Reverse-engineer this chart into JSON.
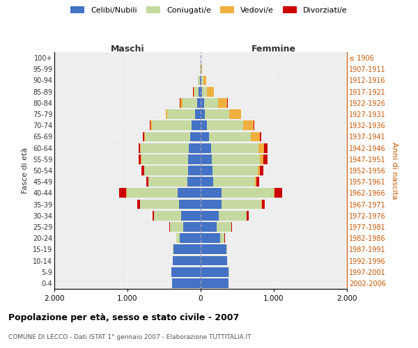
{
  "age_groups": [
    "0-4",
    "5-9",
    "10-14",
    "15-19",
    "20-24",
    "25-29",
    "30-34",
    "35-39",
    "40-44",
    "45-49",
    "50-54",
    "55-59",
    "60-64",
    "65-69",
    "70-74",
    "75-79",
    "80-84",
    "85-89",
    "90-94",
    "95-99",
    "100+"
  ],
  "birth_years": [
    "2002-2006",
    "1997-2001",
    "1992-1996",
    "1987-1991",
    "1982-1986",
    "1977-1981",
    "1972-1976",
    "1967-1971",
    "1962-1966",
    "1957-1961",
    "1952-1956",
    "1947-1951",
    "1942-1946",
    "1937-1941",
    "1932-1936",
    "1927-1931",
    "1922-1926",
    "1917-1921",
    "1912-1916",
    "1907-1911",
    "≤ 1906"
  ],
  "maschi": {
    "celibi": [
      395,
      400,
      380,
      370,
      290,
      240,
      270,
      300,
      310,
      180,
      170,
      170,
      165,
      140,
      120,
      80,
      50,
      25,
      12,
      4,
      2
    ],
    "coniugati": [
      0,
      1,
      2,
      10,
      40,
      180,
      370,
      530,
      700,
      530,
      600,
      640,
      650,
      620,
      550,
      380,
      200,
      60,
      25,
      5,
      1
    ],
    "vedovi": [
      0,
      0,
      0,
      0,
      0,
      1,
      2,
      3,
      5,
      3,
      5,
      5,
      10,
      15,
      20,
      15,
      30,
      15,
      5,
      2,
      0
    ],
    "divorziati": [
      0,
      0,
      0,
      0,
      2,
      5,
      15,
      35,
      100,
      30,
      35,
      35,
      25,
      15,
      10,
      3,
      2,
      1,
      0,
      0,
      0
    ]
  },
  "femmine": {
    "nubili": [
      380,
      385,
      360,
      350,
      265,
      220,
      250,
      290,
      290,
      175,
      165,
      155,
      140,
      110,
      90,
      60,
      45,
      20,
      10,
      4,
      2
    ],
    "coniugate": [
      0,
      1,
      2,
      15,
      60,
      200,
      380,
      540,
      710,
      570,
      620,
      650,
      650,
      580,
      490,
      330,
      190,
      70,
      30,
      8,
      1
    ],
    "vedove": [
      0,
      0,
      0,
      0,
      1,
      2,
      3,
      5,
      10,
      15,
      25,
      50,
      80,
      120,
      140,
      160,
      130,
      90,
      35,
      10,
      1
    ],
    "divorziate": [
      0,
      0,
      0,
      1,
      3,
      8,
      20,
      40,
      100,
      40,
      50,
      55,
      40,
      20,
      12,
      5,
      4,
      2,
      1,
      0,
      0
    ]
  },
  "colors": {
    "celibi_nubili": "#4472C4",
    "coniugati": "#C5D9A0",
    "vedovi": "#F0B040",
    "divorziati": "#CC0000"
  },
  "title": "Popolazione per età, sesso e stato civile - 2007",
  "subtitle": "COMUNE DI LECCO - Dati ISTAT 1° gennaio 2007 - Elaborazione TUTTITALIA.IT",
  "xlabel_left": "Maschi",
  "xlabel_right": "Femmine",
  "ylabel_left": "Fasce di età",
  "ylabel_right": "Anni di nascita",
  "xlim": 2000,
  "xticks": [
    -2000,
    -1000,
    0,
    1000,
    2000
  ],
  "xticklabels": [
    "2.000",
    "1.000",
    "0",
    "1.000",
    "2.000"
  ],
  "background_color": "#eeeeee"
}
